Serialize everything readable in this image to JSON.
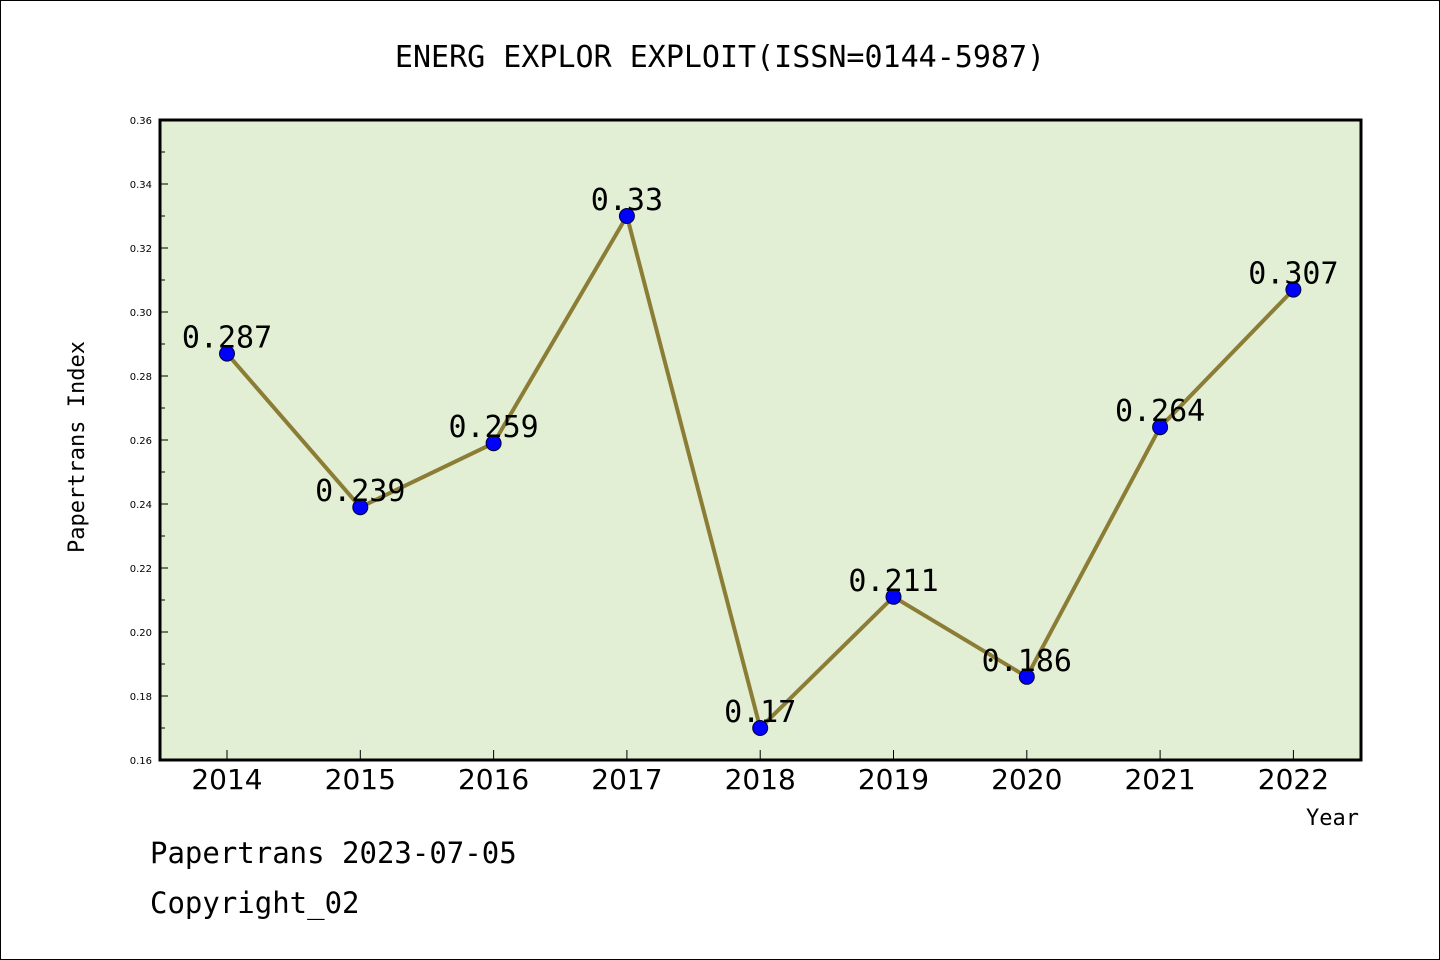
{
  "footer": {
    "line1": "Papertrans 2023-07-05",
    "line2": "Copyright_02"
  },
  "colors": {
    "plot_background": "#e2efd5",
    "line": "#8b7d35",
    "marker": "#0000ff"
  },
  "chart_data": {
    "type": "line",
    "title": "ENERG EXPLOR EXPLOIT(ISSN=0144-5987)",
    "xlabel": "Year",
    "ylabel": "Papertrans Index",
    "ylim": [
      0.16,
      0.36
    ],
    "yticks": [
      "0.16",
      "0.18",
      "0.20",
      "0.22",
      "0.24",
      "0.26",
      "0.28",
      "0.30",
      "0.32",
      "0.34",
      "0.36"
    ],
    "categories": [
      "2014",
      "2015",
      "2016",
      "2017",
      "2018",
      "2019",
      "2020",
      "2021",
      "2022"
    ],
    "values": [
      0.287,
      0.239,
      0.259,
      0.33,
      0.17,
      0.211,
      0.186,
      0.264,
      0.307
    ],
    "data_labels": [
      "0.287",
      "0.239",
      "0.259",
      "0.33",
      "0.17",
      "0.211",
      "0.186",
      "0.264",
      "0.307"
    ],
    "grid": false,
    "legend": "none"
  }
}
